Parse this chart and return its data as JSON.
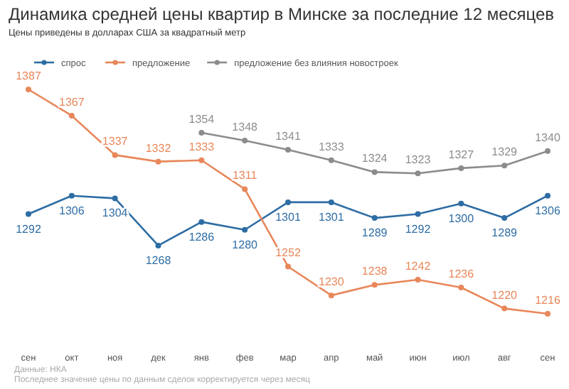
{
  "chart_data": {
    "type": "line",
    "title": "Динамика средней цены квартир в Минске за последние 12 месяцев",
    "subtitle": "Цены приведены в долларах США за квадратный метр",
    "categories": [
      "сен",
      "окт",
      "ноя",
      "дек",
      "янв",
      "фев",
      "мар",
      "апр",
      "май",
      "июн",
      "июл",
      "авг",
      "сен"
    ],
    "series": [
      {
        "name": "спрос",
        "color": "#2e6da4",
        "values": [
          1292,
          1306,
          1304,
          1268,
          1286,
          1280,
          1301,
          1301,
          1289,
          1292,
          1300,
          1289,
          1306
        ]
      },
      {
        "name": "предложение",
        "color": "#e8875a",
        "values": [
          1387,
          1367,
          1337,
          1332,
          1333,
          1311,
          1252,
          1230,
          1238,
          1242,
          1236,
          1220,
          1216
        ]
      },
      {
        "name": "предложение без влияния новостроек",
        "color": "#8c8c8c",
        "values": [
          null,
          null,
          null,
          null,
          1354,
          1348,
          1341,
          1333,
          1324,
          1323,
          1327,
          1329,
          1340
        ]
      }
    ],
    "data_labels": true,
    "legend": "top left",
    "marker": "circle",
    "line_style": "solid",
    "grid": false,
    "annotations": [
      "Данные: НКА",
      "Последнее значение цены по данным сделок корректируется через месяц"
    ]
  }
}
